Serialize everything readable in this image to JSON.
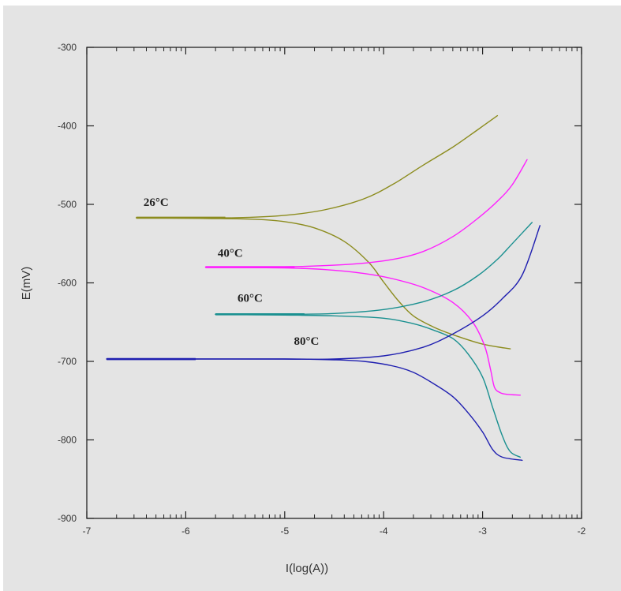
{
  "chart_data": {
    "type": "line",
    "title": "",
    "xlabel": "I(log(A))",
    "ylabel": "E(mV)",
    "xlim": [
      -7,
      -2
    ],
    "ylim": [
      -900,
      -300
    ],
    "x_scale": "linear",
    "y_scale": "linear",
    "x_ticks": [
      -7,
      -6,
      -5,
      -4,
      -3,
      -2
    ],
    "y_ticks": [
      -300,
      -400,
      -500,
      -600,
      -700,
      -800,
      -900
    ],
    "x_ticks_text": [
      "-7",
      "-6",
      "-5",
      "-4",
      "-3",
      "-2"
    ],
    "y_ticks_text": [
      "-300",
      "-400",
      "-500",
      "-600",
      "-700",
      "-800",
      "-900"
    ],
    "grid": false,
    "legend": "none",
    "series": [
      {
        "name": "26°C",
        "color": "#8c8c1e",
        "label_at": [
          -6.3,
          -502
        ],
        "branches": [
          {
            "x": [
              -6.5,
              -6.0,
              -5.5,
              -5.0,
              -4.6,
              -4.2,
              -3.9,
              -3.6,
              -3.3,
              -3.05,
              -2.85
            ],
            "y": [
              -517,
              -517,
              -517,
              -514,
              -507,
              -493,
              -474,
              -450,
              -427,
              -405,
              -387
            ]
          },
          {
            "x": [
              -6.5,
              -5.8,
              -5.3,
              -5.0,
              -4.7,
              -4.4,
              -4.15,
              -4.0,
              -3.85,
              -3.7,
              -3.5,
              -3.3,
              -3.0,
              -2.72
            ],
            "y": [
              -517,
              -518,
              -519,
              -522,
              -530,
              -547,
              -574,
              -599,
              -623,
              -642,
              -656,
              -666,
              -678,
              -684
            ]
          }
        ]
      },
      {
        "name": "40°C",
        "color": "#ff1eff",
        "label_at": [
          -5.55,
          -567
        ],
        "branches": [
          {
            "x": [
              -5.8,
              -5.3,
              -4.8,
              -4.3,
              -3.9,
              -3.6,
              -3.3,
              -3.05,
              -2.85,
              -2.7,
              -2.55
            ],
            "y": [
              -580,
              -580,
              -579,
              -576,
              -570,
              -560,
              -541,
              -518,
              -496,
              -475,
              -443
            ]
          },
          {
            "x": [
              -5.8,
              -5.0,
              -4.6,
              -4.2,
              -3.9,
              -3.6,
              -3.3,
              -3.1,
              -2.98,
              -2.92,
              -2.88,
              -2.82,
              -2.75,
              -2.62
            ],
            "y": [
              -580,
              -581,
              -583,
              -588,
              -595,
              -606,
              -625,
              -650,
              -680,
              -710,
              -733,
              -740,
              -742,
              -743
            ]
          }
        ]
      },
      {
        "name": "60°C",
        "color": "#1a9090",
        "label_at": [
          -5.35,
          -624
        ],
        "branches": [
          {
            "x": [
              -5.7,
              -5.0,
              -4.5,
              -4.0,
              -3.6,
              -3.3,
              -3.05,
              -2.85,
              -2.7,
              -2.5
            ],
            "y": [
              -640,
              -640,
              -639,
              -634,
              -624,
              -610,
              -591,
              -570,
              -550,
              -523
            ]
          },
          {
            "x": [
              -5.7,
              -5.0,
              -4.5,
              -4.0,
              -3.7,
              -3.5,
              -3.3,
              -3.15,
              -3.0,
              -2.9,
              -2.8,
              -2.72,
              -2.62
            ],
            "y": [
              -640,
              -641,
              -642,
              -645,
              -652,
              -660,
              -671,
              -690,
              -720,
              -758,
              -795,
              -815,
              -822
            ]
          }
        ]
      },
      {
        "name": "80°C",
        "color": "#1f1fb0",
        "label_at": [
          -4.78,
          -679
        ],
        "branches": [
          {
            "x": [
              -6.8,
              -6.0,
              -5.0,
              -4.5,
              -4.0,
              -3.6,
              -3.3,
              -3.0,
              -2.8,
              -2.6,
              -2.42
            ],
            "y": [
              -697,
              -697,
              -697,
              -697,
              -693,
              -682,
              -665,
              -642,
              -620,
              -590,
              -527
            ]
          },
          {
            "x": [
              -6.8,
              -6.0,
              -5.0,
              -4.5,
              -4.2,
              -3.9,
              -3.7,
              -3.5,
              -3.3,
              -3.15,
              -3.0,
              -2.9,
              -2.8,
              -2.6
            ],
            "y": [
              -697,
              -697,
              -697,
              -698,
              -700,
              -706,
              -714,
              -728,
              -745,
              -765,
              -790,
              -812,
              -822,
              -826
            ]
          }
        ]
      }
    ]
  }
}
